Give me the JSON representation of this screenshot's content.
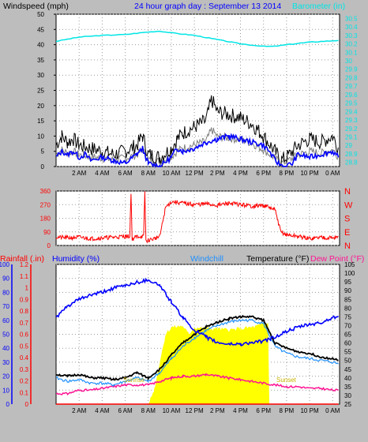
{
  "header": {
    "left_label": "Windspeed (mph)",
    "title": "24 hour graph day : September 13 2014",
    "right_label": "Barometer (in)"
  },
  "colors": {
    "background": "#bdbdbd",
    "plot_bg": "#ffffff",
    "wind": "#000000",
    "gust": "#808080",
    "avg": "#0000ff",
    "barometer": "#00e5e5",
    "direction": "#ff0000",
    "rain": "#ff0000",
    "humidity": "#0000ff",
    "windchill": "#1e90ff",
    "temperature": "#000000",
    "dewpoint": "#ff1493",
    "solar": "#ffff00"
  },
  "chart_data": [
    {
      "type": "line",
      "name": "wind_barometer",
      "x_tick_labels": [
        "2 AM",
        "4 AM",
        "6 AM",
        "8 AM",
        "10 AM",
        "12 PM",
        "2 PM",
        "4 PM",
        "6 PM",
        "8 PM",
        "10 PM",
        "0 AM"
      ],
      "x_tick_hours": [
        2,
        4,
        6,
        8,
        10,
        12,
        14,
        16,
        18,
        20,
        22,
        24
      ],
      "x_range_hours": [
        0,
        24.6
      ],
      "y_left": {
        "label": "Windspeed (mph)",
        "ticks": [
          "0",
          "5",
          "10",
          "15",
          "20",
          "25",
          "30",
          "35",
          "40",
          "45",
          "50"
        ],
        "range": [
          0,
          50
        ]
      },
      "y_right": {
        "label": "Barometer (in)",
        "ticks": [
          "28.8",
          "28.9",
          "29",
          "29.1",
          "29.2",
          "29.3",
          "29.4",
          "29.5",
          "29.6",
          "29.7",
          "29.8",
          "29.9",
          "30",
          "30.1",
          "30.2",
          "30.3",
          "30.4",
          "30.5"
        ],
        "range": [
          28.75,
          30.55
        ]
      },
      "series": {
        "barometer": {
          "x": [
            0,
            2,
            4,
            6,
            8,
            9,
            10,
            12,
            14,
            16,
            18,
            19,
            20,
            22,
            24.5
          ],
          "y": [
            30.23,
            30.28,
            30.3,
            30.31,
            30.34,
            30.35,
            30.33,
            30.3,
            30.25,
            30.2,
            30.17,
            30.17,
            30.19,
            30.22,
            30.24
          ]
        },
        "wind_avg": {
          "x": [
            0,
            0.5,
            1,
            1.5,
            2,
            2.5,
            3,
            4,
            5,
            6,
            7,
            7.5,
            8,
            9,
            10,
            10.5,
            11,
            12,
            13,
            14,
            15,
            16,
            17,
            18,
            18.5,
            19,
            19.3,
            19.8,
            20.5,
            21,
            22,
            23,
            24,
            24.5
          ],
          "y": [
            3,
            5,
            4,
            5,
            3,
            4,
            2,
            3,
            2,
            1,
            4,
            6,
            1,
            0,
            3,
            6,
            5,
            6,
            8,
            9,
            10,
            9,
            8,
            7,
            5,
            2,
            1,
            0,
            1,
            4,
            3,
            4,
            5,
            3
          ]
        },
        "wind_gust": {
          "x": [
            0,
            0.5,
            1,
            1.5,
            2,
            3,
            4,
            5,
            6,
            7,
            7.5,
            8,
            9,
            10,
            10.5,
            11,
            12,
            13,
            13.5,
            14,
            15,
            16,
            17,
            17.5,
            18,
            19,
            19.5,
            20,
            21,
            22,
            23,
            24,
            24.5
          ],
          "y": [
            7,
            10,
            8,
            9,
            7,
            6,
            5,
            4,
            5,
            7,
            10,
            4,
            3,
            6,
            9,
            11,
            13,
            15,
            22,
            18,
            17,
            16,
            14,
            12,
            10,
            5,
            2,
            3,
            7,
            9,
            8,
            10,
            6
          ]
        }
      }
    },
    {
      "type": "line",
      "name": "wind_direction",
      "x_range_hours": [
        0,
        24.6
      ],
      "y_left": {
        "ticks": [
          "0",
          "90",
          "180",
          "270",
          "360"
        ],
        "range": [
          0,
          360
        ]
      },
      "y_right": {
        "ticks": [
          "N",
          "E",
          "S",
          "W",
          "N"
        ]
      },
      "series": {
        "direction": {
          "x": [
            0,
            1,
            2,
            3,
            4,
            5,
            6,
            6.4,
            6.5,
            6.6,
            7,
            7.6,
            7.7,
            7.8,
            8,
            8.5,
            9,
            9.5,
            10,
            11,
            12,
            13,
            14,
            15,
            16,
            17,
            18,
            18.5,
            19,
            19.5,
            20,
            21,
            22,
            23,
            24,
            24.5
          ],
          "y": [
            55,
            50,
            55,
            45,
            50,
            55,
            60,
            60,
            355,
            40,
            60,
            60,
            355,
            30,
            35,
            45,
            60,
            250,
            290,
            280,
            270,
            275,
            265,
            280,
            270,
            260,
            265,
            250,
            235,
            90,
            70,
            60,
            45,
            55,
            50,
            60
          ]
        }
      }
    },
    {
      "type": "line",
      "name": "temperature_humidity",
      "header": {
        "rainfall": "Rainfall (.in)",
        "humidity": "Humidity (%)",
        "windchill": "Windchill",
        "temperature": "Temperature (°F)",
        "dewpoint": "Dew Point (°F)"
      },
      "x_range_hours": [
        0,
        24.6
      ],
      "y_humidity": {
        "ticks": [
          "0",
          "10",
          "20",
          "30",
          "40",
          "50",
          "60",
          "70",
          "80",
          "90",
          "100"
        ],
        "range": [
          0,
          100
        ]
      },
      "y_rain": {
        "ticks": [
          "0",
          "0.1",
          "0.2",
          "0.3",
          "0.4",
          "0.5",
          "0.6",
          "0.7",
          "0.8",
          "0.9",
          "1",
          "1.1",
          "1.2"
        ],
        "range": [
          0,
          1.2
        ]
      },
      "y_temp": {
        "ticks": [
          "25",
          "30",
          "35",
          "40",
          "45",
          "50",
          "55",
          "60",
          "65",
          "70",
          "75",
          "80",
          "85",
          "90",
          "95",
          "100",
          "105"
        ],
        "range": [
          25,
          105
        ]
      },
      "annotations": {
        "sunrise": "Sunrise",
        "sunset": "Sunset"
      },
      "series": {
        "humidity": {
          "x": [
            0,
            1,
            2,
            3,
            4,
            5,
            6,
            7,
            8,
            9,
            10,
            11,
            12,
            13,
            14,
            15,
            16,
            17,
            18,
            19,
            20,
            21,
            22,
            23,
            24,
            24.5
          ],
          "y": [
            62,
            70,
            75,
            78,
            80,
            83,
            85,
            87,
            89,
            85,
            73,
            62,
            53,
            48,
            44,
            43,
            43,
            44,
            45,
            48,
            52,
            55,
            57,
            58,
            62,
            63
          ]
        },
        "temperature": {
          "x": [
            0,
            1,
            2,
            3,
            4,
            5,
            6,
            7,
            8,
            9,
            10,
            11,
            12,
            13,
            14,
            15,
            16,
            17,
            18,
            19,
            20,
            21,
            22,
            23,
            24,
            24.5
          ],
          "y": [
            42,
            41,
            42,
            40,
            40,
            39,
            40,
            43,
            40,
            45,
            53,
            60,
            65,
            69,
            72,
            74,
            75,
            75,
            73,
            60,
            57,
            55,
            54,
            52,
            51,
            50
          ]
        },
        "windchill": {
          "x": [
            0,
            1,
            2,
            3,
            4,
            5,
            6,
            7,
            8,
            9,
            10,
            11,
            12,
            13,
            14,
            15,
            16,
            17,
            18,
            19,
            20,
            21,
            22,
            23,
            24,
            24.5
          ],
          "y": [
            40,
            38,
            39,
            37,
            37,
            36,
            38,
            40,
            38,
            43,
            51,
            58,
            63,
            67,
            70,
            72,
            73,
            73,
            71,
            58,
            54,
            52,
            51,
            50,
            49,
            48
          ]
        },
        "dewpoint": {
          "x": [
            0,
            1,
            2,
            3,
            4,
            5,
            6,
            7,
            8,
            9,
            10,
            11,
            12,
            13,
            14,
            15,
            16,
            17,
            18,
            19,
            20,
            21,
            22,
            23,
            24,
            24.5
          ],
          "y": [
            31,
            31,
            33,
            33,
            34,
            35,
            36,
            36,
            36,
            38,
            40,
            41,
            41,
            42,
            41,
            40,
            39,
            38,
            37,
            36,
            35,
            35,
            34,
            34,
            33,
            33
          ]
        },
        "solar": {
          "x": [
            0,
            8,
            8.5,
            9,
            9.5,
            10,
            11,
            11.5,
            12,
            13,
            14,
            15,
            16,
            17,
            18,
            18.4,
            18.5,
            18.6,
            24.6
          ],
          "y": [
            0,
            0,
            10,
            30,
            50,
            55,
            56,
            50,
            55,
            54,
            54,
            53,
            54,
            55,
            57,
            58,
            0,
            0,
            0
          ]
        },
        "rain": {
          "x": [
            0,
            24.5
          ],
          "y": [
            0,
            0
          ]
        }
      }
    }
  ]
}
